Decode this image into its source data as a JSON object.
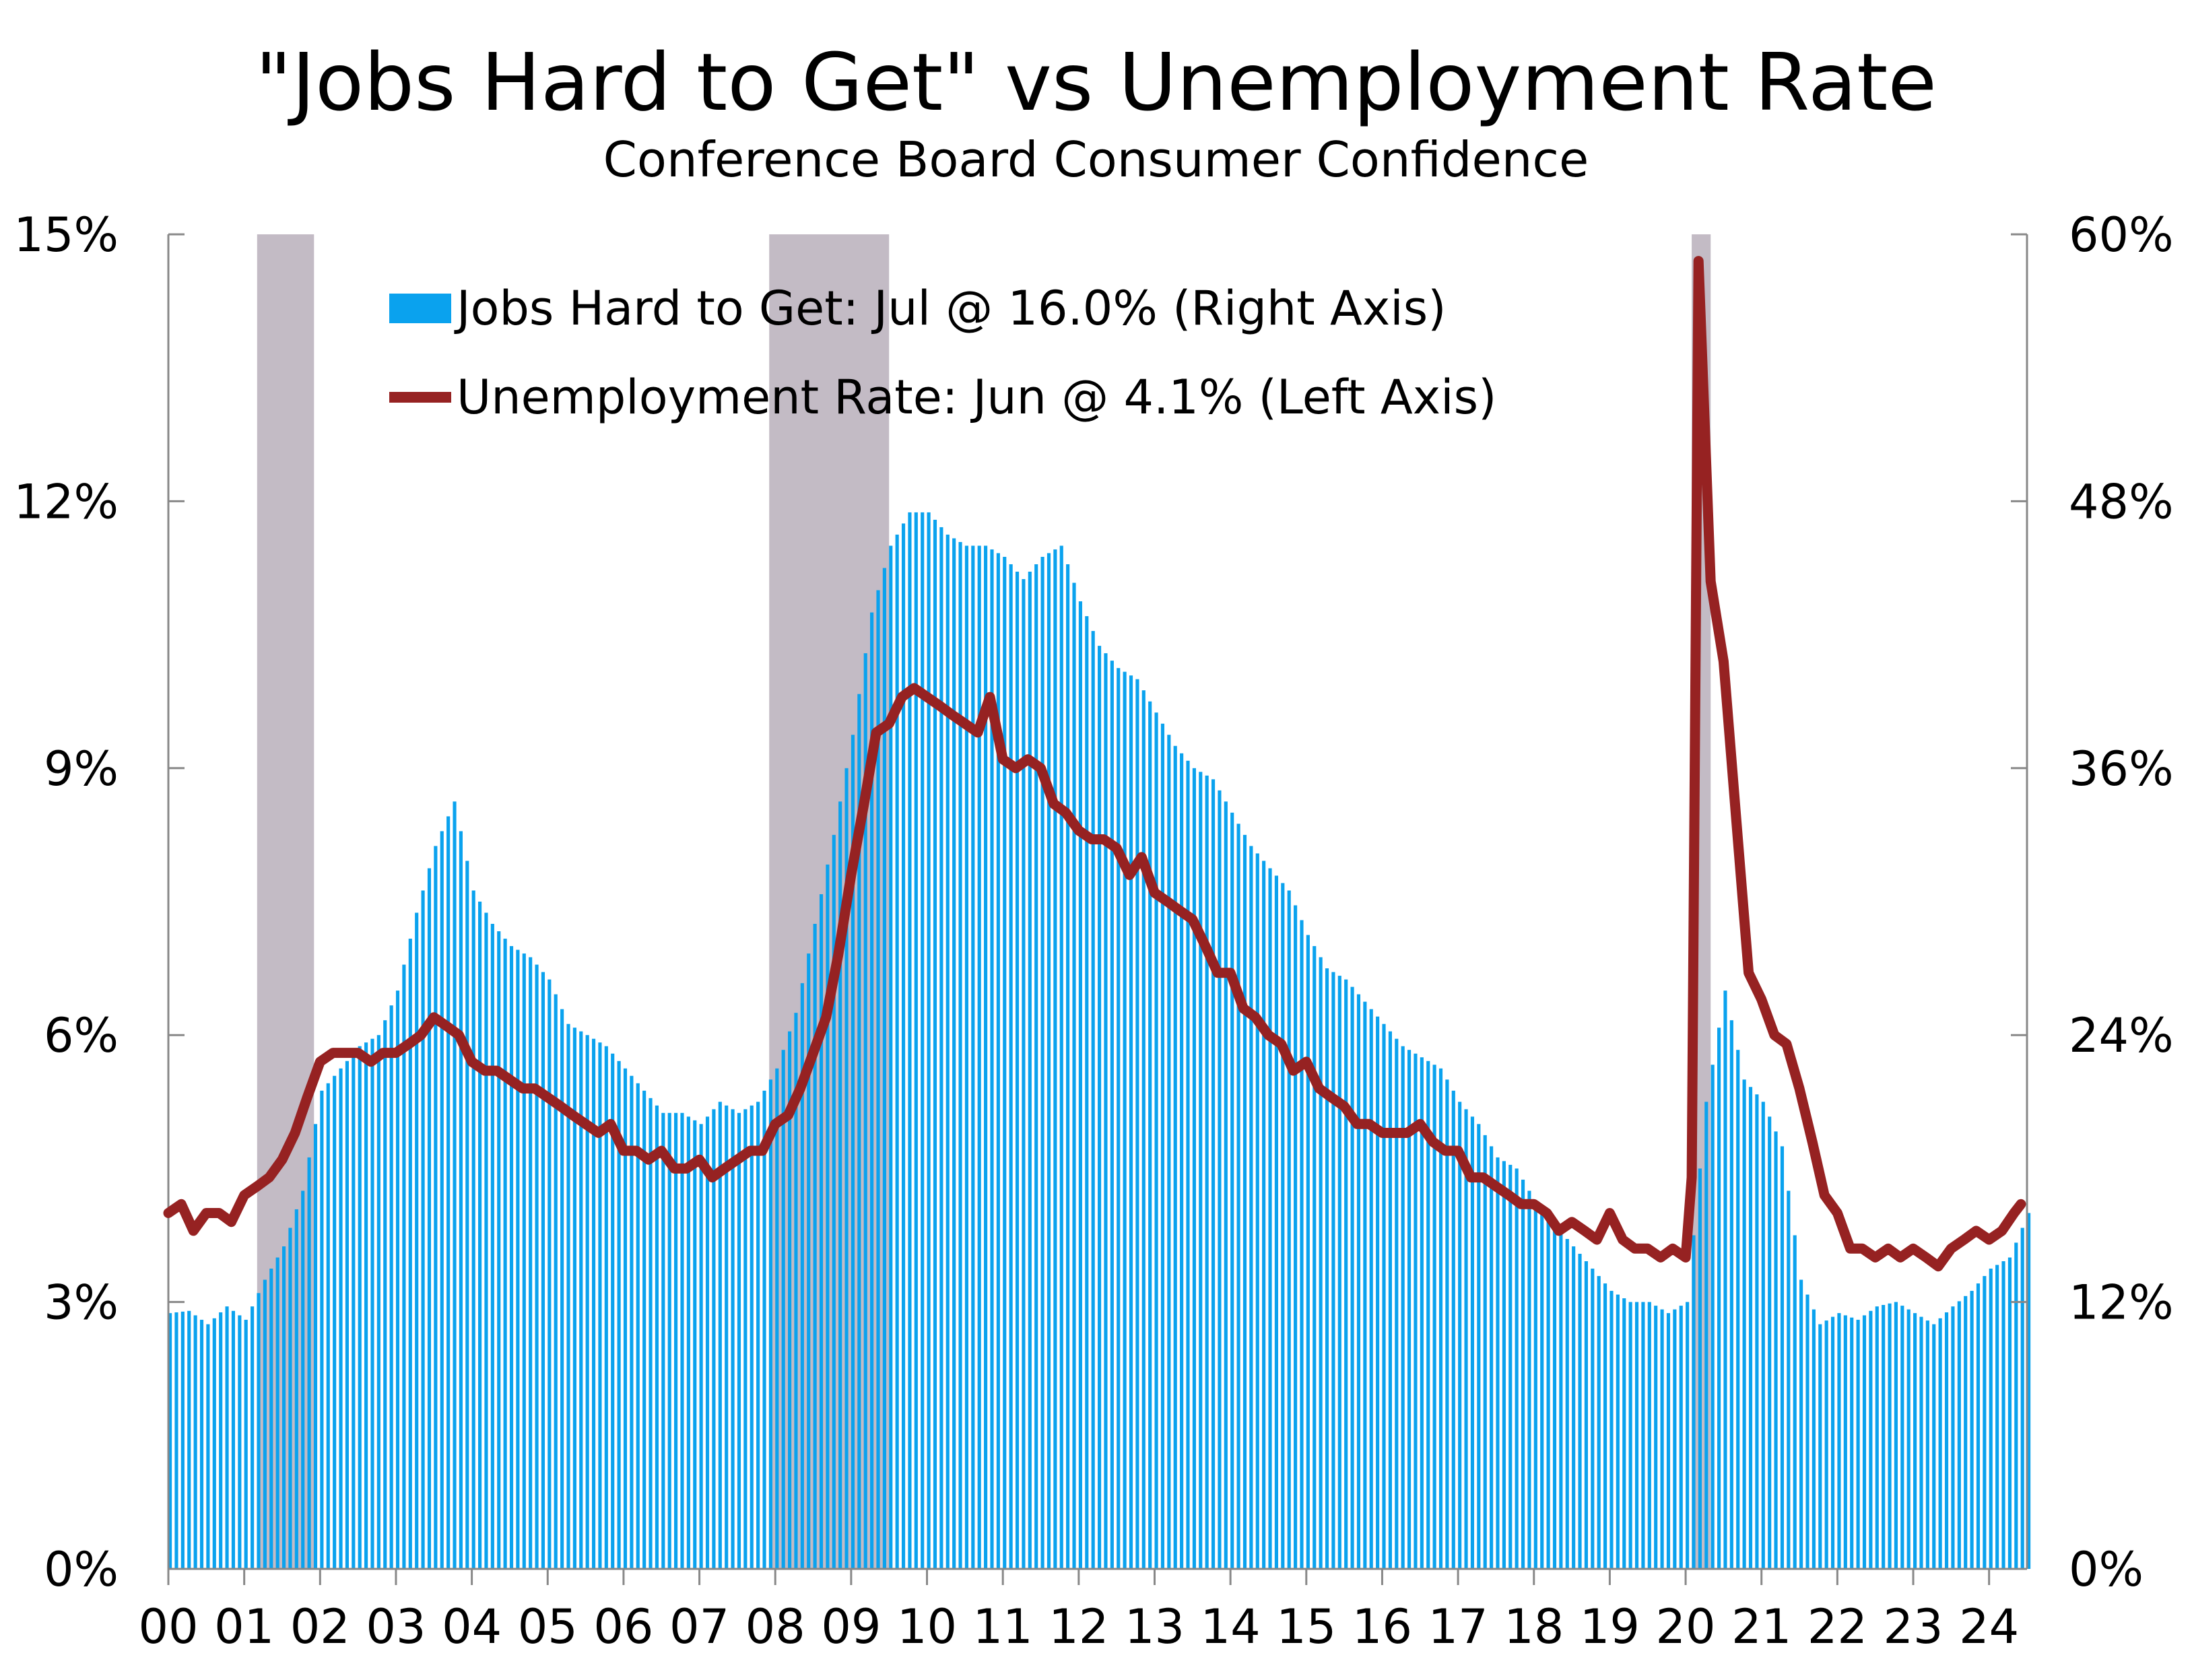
{
  "chart_data": {
    "type": "bar+line",
    "title": "\"Jobs Hard to Get\" vs Unemployment Rate",
    "subtitle": "Conference Board Consumer Confidence",
    "colors": {
      "bars": "#0aa2ee",
      "line": "#962222",
      "recession": "#c3bbc5",
      "axis": "#888888"
    },
    "left_axis": {
      "min": 0,
      "max": 15,
      "ticks": [
        "0%",
        "3%",
        "6%",
        "9%",
        "12%",
        "15%"
      ]
    },
    "right_axis": {
      "min": 0,
      "max": 60,
      "ticks": [
        "0%",
        "12%",
        "24%",
        "36%",
        "48%",
        "60%"
      ]
    },
    "x_axis": {
      "start": 2000.0,
      "end": 2024.5,
      "tick_labels": [
        "00",
        "01",
        "02",
        "03",
        "04",
        "05",
        "06",
        "07",
        "08",
        "09",
        "10",
        "11",
        "12",
        "13",
        "14",
        "15",
        "16",
        "17",
        "18",
        "19",
        "20",
        "21",
        "22",
        "23",
        "24"
      ]
    },
    "recessions": [
      [
        2001.17,
        2001.92
      ],
      [
        2007.92,
        2009.5
      ],
      [
        2020.08,
        2020.33
      ]
    ],
    "legend": {
      "placement": "top-left",
      "bars_label": "Jobs Hard to Get: Jul @ 16.0% (Right Axis)",
      "line_label": "Unemployment Rate: Jun @ 4.1% (Left Axis)"
    },
    "series": [
      {
        "name": "Jobs Hard to Get: Jul @ 16.0% (Right Axis)",
        "axis": "right",
        "type": "bar",
        "points": [
          [
            2000.0,
            11.5
          ],
          [
            2000.25,
            11.6
          ],
          [
            2000.5,
            11.0
          ],
          [
            2000.75,
            11.8
          ],
          [
            2001.0,
            11.2
          ],
          [
            2001.25,
            13.0
          ],
          [
            2001.5,
            14.5
          ],
          [
            2001.75,
            17.0
          ],
          [
            2002.0,
            21.5
          ],
          [
            2002.25,
            22.5
          ],
          [
            2002.5,
            23.5
          ],
          [
            2002.75,
            24.0
          ],
          [
            2003.0,
            26.0
          ],
          [
            2003.25,
            29.5
          ],
          [
            2003.5,
            32.5
          ],
          [
            2003.75,
            34.5
          ],
          [
            2004.0,
            30.5
          ],
          [
            2004.25,
            29.0
          ],
          [
            2004.5,
            28.0
          ],
          [
            2004.75,
            27.5
          ],
          [
            2005.0,
            26.5
          ],
          [
            2005.25,
            24.5
          ],
          [
            2005.5,
            24.0
          ],
          [
            2005.75,
            23.5
          ],
          [
            2006.0,
            22.5
          ],
          [
            2006.25,
            21.5
          ],
          [
            2006.5,
            20.5
          ],
          [
            2006.75,
            20.5
          ],
          [
            2007.0,
            20.0
          ],
          [
            2007.25,
            21.0
          ],
          [
            2007.5,
            20.5
          ],
          [
            2007.75,
            21.0
          ],
          [
            2008.0,
            22.5
          ],
          [
            2008.25,
            25.0
          ],
          [
            2008.5,
            29.0
          ],
          [
            2008.75,
            33.0
          ],
          [
            2009.0,
            37.5
          ],
          [
            2009.25,
            43.0
          ],
          [
            2009.5,
            46.0
          ],
          [
            2009.75,
            47.5
          ],
          [
            2010.0,
            47.5
          ],
          [
            2010.25,
            46.5
          ],
          [
            2010.5,
            46.0
          ],
          [
            2010.75,
            46.0
          ],
          [
            2011.0,
            45.5
          ],
          [
            2011.25,
            44.5
          ],
          [
            2011.5,
            45.5
          ],
          [
            2011.75,
            46.0
          ],
          [
            2012.0,
            43.5
          ],
          [
            2012.25,
            41.5
          ],
          [
            2012.5,
            40.5
          ],
          [
            2012.75,
            40.0
          ],
          [
            2013.0,
            38.5
          ],
          [
            2013.25,
            37.0
          ],
          [
            2013.5,
            36.0
          ],
          [
            2013.75,
            35.5
          ],
          [
            2014.0,
            34.0
          ],
          [
            2014.25,
            32.5
          ],
          [
            2014.5,
            31.5
          ],
          [
            2014.75,
            30.5
          ],
          [
            2015.0,
            28.5
          ],
          [
            2015.25,
            27.0
          ],
          [
            2015.5,
            26.5
          ],
          [
            2015.75,
            25.5
          ],
          [
            2016.0,
            24.5
          ],
          [
            2016.25,
            23.5
          ],
          [
            2016.5,
            23.0
          ],
          [
            2016.75,
            22.5
          ],
          [
            2017.0,
            21.0
          ],
          [
            2017.25,
            20.0
          ],
          [
            2017.5,
            18.5
          ],
          [
            2017.75,
            18.0
          ],
          [
            2018.0,
            16.5
          ],
          [
            2018.25,
            15.5
          ],
          [
            2018.5,
            14.5
          ],
          [
            2018.75,
            13.5
          ],
          [
            2019.0,
            12.5
          ],
          [
            2019.25,
            12.0
          ],
          [
            2019.5,
            12.0
          ],
          [
            2019.75,
            11.5
          ],
          [
            2020.0,
            12.0
          ],
          [
            2020.25,
            21.0
          ],
          [
            2020.5,
            26.0
          ],
          [
            2020.75,
            22.0
          ],
          [
            2021.0,
            21.0
          ],
          [
            2021.25,
            19.0
          ],
          [
            2021.5,
            13.0
          ],
          [
            2021.75,
            11.0
          ],
          [
            2022.0,
            11.5
          ],
          [
            2022.25,
            11.2
          ],
          [
            2022.5,
            11.8
          ],
          [
            2022.75,
            12.0
          ],
          [
            2023.0,
            11.5
          ],
          [
            2023.25,
            11.0
          ],
          [
            2023.5,
            11.8
          ],
          [
            2023.75,
            12.5
          ],
          [
            2024.0,
            13.5
          ],
          [
            2024.25,
            14.0
          ],
          [
            2024.5,
            16.0
          ]
        ]
      },
      {
        "name": "Unemployment Rate: Jun @ 4.1% (Left Axis)",
        "axis": "left",
        "type": "line",
        "points": [
          [
            2000.0,
            4.0
          ],
          [
            2000.17,
            4.1
          ],
          [
            2000.33,
            3.8
          ],
          [
            2000.5,
            4.0
          ],
          [
            2000.67,
            4.0
          ],
          [
            2000.83,
            3.9
          ],
          [
            2001.0,
            4.2
          ],
          [
            2001.17,
            4.3
          ],
          [
            2001.33,
            4.4
          ],
          [
            2001.5,
            4.6
          ],
          [
            2001.67,
            4.9
          ],
          [
            2001.83,
            5.3
          ],
          [
            2002.0,
            5.7
          ],
          [
            2002.17,
            5.8
          ],
          [
            2002.33,
            5.8
          ],
          [
            2002.5,
            5.8
          ],
          [
            2002.67,
            5.7
          ],
          [
            2002.83,
            5.8
          ],
          [
            2003.0,
            5.8
          ],
          [
            2003.17,
            5.9
          ],
          [
            2003.33,
            6.0
          ],
          [
            2003.5,
            6.2
          ],
          [
            2003.67,
            6.1
          ],
          [
            2003.83,
            6.0
          ],
          [
            2004.0,
            5.7
          ],
          [
            2004.17,
            5.6
          ],
          [
            2004.33,
            5.6
          ],
          [
            2004.5,
            5.5
          ],
          [
            2004.67,
            5.4
          ],
          [
            2004.83,
            5.4
          ],
          [
            2005.0,
            5.3
          ],
          [
            2005.17,
            5.2
          ],
          [
            2005.33,
            5.1
          ],
          [
            2005.5,
            5.0
          ],
          [
            2005.67,
            4.9
          ],
          [
            2005.83,
            5.0
          ],
          [
            2006.0,
            4.7
          ],
          [
            2006.17,
            4.7
          ],
          [
            2006.33,
            4.6
          ],
          [
            2006.5,
            4.7
          ],
          [
            2006.67,
            4.5
          ],
          [
            2006.83,
            4.5
          ],
          [
            2007.0,
            4.6
          ],
          [
            2007.17,
            4.4
          ],
          [
            2007.33,
            4.5
          ],
          [
            2007.5,
            4.6
          ],
          [
            2007.67,
            4.7
          ],
          [
            2007.83,
            4.7
          ],
          [
            2008.0,
            5.0
          ],
          [
            2008.17,
            5.1
          ],
          [
            2008.33,
            5.4
          ],
          [
            2008.5,
            5.8
          ],
          [
            2008.67,
            6.2
          ],
          [
            2008.83,
            6.9
          ],
          [
            2009.0,
            7.8
          ],
          [
            2009.17,
            8.6
          ],
          [
            2009.33,
            9.4
          ],
          [
            2009.5,
            9.5
          ],
          [
            2009.67,
            9.8
          ],
          [
            2009.83,
            9.9
          ],
          [
            2010.0,
            9.8
          ],
          [
            2010.17,
            9.7
          ],
          [
            2010.33,
            9.6
          ],
          [
            2010.5,
            9.5
          ],
          [
            2010.67,
            9.4
          ],
          [
            2010.83,
            9.8
          ],
          [
            2011.0,
            9.1
          ],
          [
            2011.17,
            9.0
          ],
          [
            2011.33,
            9.1
          ],
          [
            2011.5,
            9.0
          ],
          [
            2011.67,
            8.6
          ],
          [
            2011.83,
            8.5
          ],
          [
            2012.0,
            8.3
          ],
          [
            2012.17,
            8.2
          ],
          [
            2012.33,
            8.2
          ],
          [
            2012.5,
            8.1
          ],
          [
            2012.67,
            7.8
          ],
          [
            2012.83,
            8.0
          ],
          [
            2013.0,
            7.6
          ],
          [
            2013.17,
            7.5
          ],
          [
            2013.33,
            7.4
          ],
          [
            2013.5,
            7.3
          ],
          [
            2013.67,
            7.0
          ],
          [
            2013.83,
            6.7
          ],
          [
            2014.0,
            6.7
          ],
          [
            2014.17,
            6.3
          ],
          [
            2014.33,
            6.2
          ],
          [
            2014.5,
            6.0
          ],
          [
            2014.67,
            5.9
          ],
          [
            2014.83,
            5.6
          ],
          [
            2015.0,
            5.7
          ],
          [
            2015.17,
            5.4
          ],
          [
            2015.33,
            5.3
          ],
          [
            2015.5,
            5.2
          ],
          [
            2015.67,
            5.0
          ],
          [
            2015.83,
            5.0
          ],
          [
            2016.0,
            4.9
          ],
          [
            2016.17,
            4.9
          ],
          [
            2016.33,
            4.9
          ],
          [
            2016.5,
            5.0
          ],
          [
            2016.67,
            4.8
          ],
          [
            2016.83,
            4.7
          ],
          [
            2017.0,
            4.7
          ],
          [
            2017.17,
            4.4
          ],
          [
            2017.33,
            4.4
          ],
          [
            2017.5,
            4.3
          ],
          [
            2017.67,
            4.2
          ],
          [
            2017.83,
            4.1
          ],
          [
            2018.0,
            4.1
          ],
          [
            2018.17,
            4.0
          ],
          [
            2018.33,
            3.8
          ],
          [
            2018.5,
            3.9
          ],
          [
            2018.67,
            3.8
          ],
          [
            2018.83,
            3.7
          ],
          [
            2019.0,
            4.0
          ],
          [
            2019.17,
            3.7
          ],
          [
            2019.33,
            3.6
          ],
          [
            2019.5,
            3.6
          ],
          [
            2019.67,
            3.5
          ],
          [
            2019.83,
            3.6
          ],
          [
            2020.0,
            3.5
          ],
          [
            2020.08,
            4.4
          ],
          [
            2020.17,
            14.7
          ],
          [
            2020.33,
            11.1
          ],
          [
            2020.5,
            10.2
          ],
          [
            2020.67,
            8.4
          ],
          [
            2020.83,
            6.7
          ],
          [
            2021.0,
            6.4
          ],
          [
            2021.17,
            6.0
          ],
          [
            2021.33,
            5.9
          ],
          [
            2021.5,
            5.4
          ],
          [
            2021.67,
            4.8
          ],
          [
            2021.83,
            4.2
          ],
          [
            2022.0,
            4.0
          ],
          [
            2022.17,
            3.6
          ],
          [
            2022.33,
            3.6
          ],
          [
            2022.5,
            3.5
          ],
          [
            2022.67,
            3.6
          ],
          [
            2022.83,
            3.5
          ],
          [
            2023.0,
            3.6
          ],
          [
            2023.17,
            3.5
          ],
          [
            2023.33,
            3.4
          ],
          [
            2023.5,
            3.6
          ],
          [
            2023.67,
            3.7
          ],
          [
            2023.83,
            3.8
          ],
          [
            2024.0,
            3.7
          ],
          [
            2024.17,
            3.8
          ],
          [
            2024.33,
            4.0
          ],
          [
            2024.42,
            4.1
          ]
        ]
      }
    ]
  }
}
